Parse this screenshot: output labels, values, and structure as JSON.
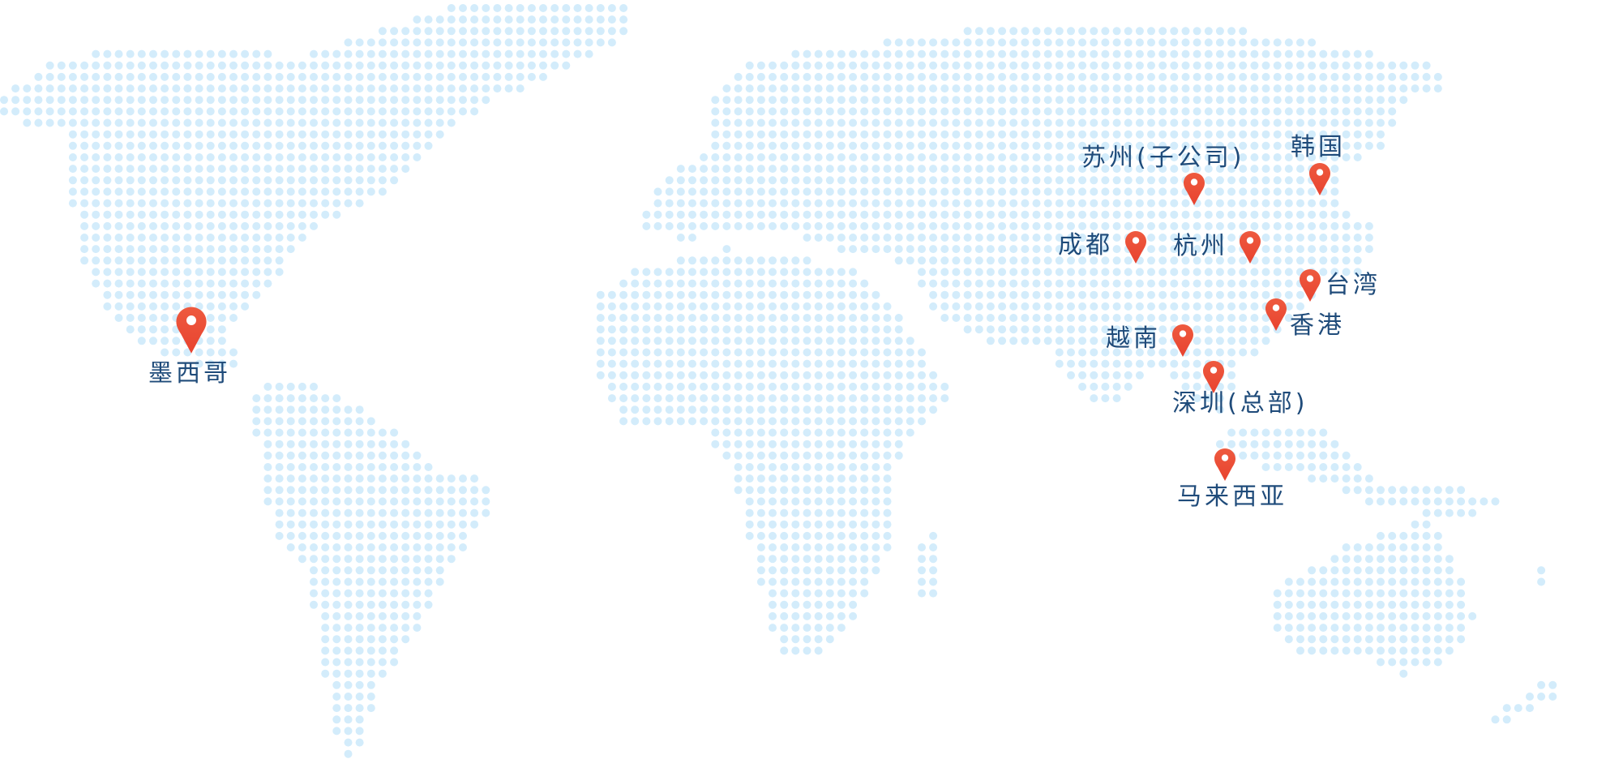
{
  "map": {
    "dot_color": "#d3ecfb",
    "pin_color": "#e8432f",
    "label_color": "#1f4b7a",
    "locations": [
      {
        "id": "mexico",
        "label": "墨西哥",
        "icon": "map-pin-icon"
      },
      {
        "id": "suzhou",
        "label": "苏州(子公司)",
        "icon": "map-pin-icon"
      },
      {
        "id": "korea",
        "label": "韩国",
        "icon": "map-pin-icon"
      },
      {
        "id": "chengdu",
        "label": "成都",
        "icon": "map-pin-icon"
      },
      {
        "id": "hangzhou",
        "label": "杭州",
        "icon": "map-pin-icon"
      },
      {
        "id": "taiwan",
        "label": "台湾",
        "icon": "map-pin-icon"
      },
      {
        "id": "hongkong",
        "label": "香港",
        "icon": "map-pin-icon"
      },
      {
        "id": "vietnam",
        "label": "越南",
        "icon": "map-pin-icon"
      },
      {
        "id": "shenzhen",
        "label": "深圳(总部)",
        "icon": "map-pin-icon"
      },
      {
        "id": "malaysia",
        "label": "马来西亚",
        "icon": "map-pin-icon"
      }
    ]
  }
}
